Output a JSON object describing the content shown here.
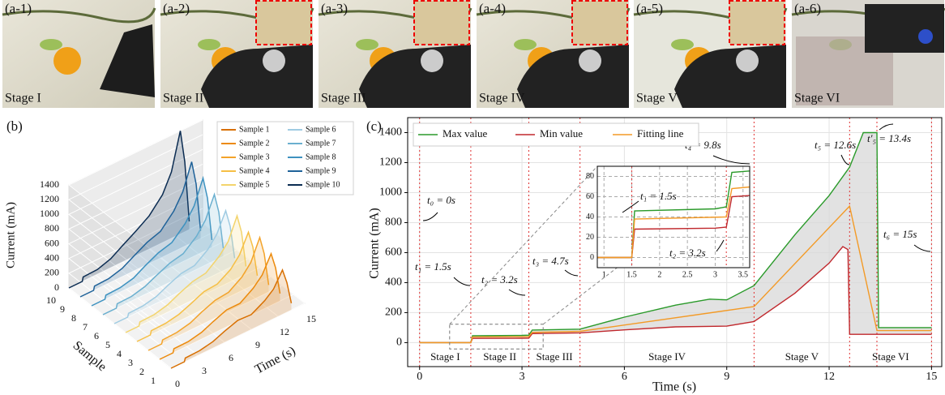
{
  "photos": [
    {
      "tag": "(a-1)",
      "stage": "Stage I"
    },
    {
      "tag": "(a-2)",
      "stage": "Stage II"
    },
    {
      "tag": "(a-3)",
      "stage": "Stage III"
    },
    {
      "tag": "(a-4)",
      "stage": "Stage IV"
    },
    {
      "tag": "(a-5)",
      "stage": "Stage V"
    },
    {
      "tag": "(a-6)",
      "stage": "Stage VI"
    }
  ],
  "chart_data": [
    {
      "type": "line3d",
      "panel": "(b)",
      "zlabel": "Current (mA)",
      "ylabel": "Sample",
      "xlabel": "Time (s)",
      "xlim": [
        0,
        15
      ],
      "xticks": [
        0,
        3,
        6,
        9,
        12,
        15
      ],
      "ylim": [
        1,
        10
      ],
      "yticks": [
        1,
        2,
        3,
        4,
        5,
        6,
        7,
        8,
        9,
        10
      ],
      "zlim": [
        0,
        1400
      ],
      "zticks": [
        0,
        200,
        400,
        600,
        800,
        1000,
        1200,
        1400
      ],
      "x": [
        0,
        1.5,
        1.6,
        3.2,
        4.7,
        6,
        7.5,
        9,
        10.5,
        11.5,
        12.5,
        13,
        13.5
      ],
      "series": [
        {
          "name": "Sample 1",
          "sample": 1,
          "color": "#d86f00",
          "values": [
            0,
            0,
            45,
            50,
            85,
            150,
            210,
            200,
            300,
            400,
            600,
            400,
            90
          ]
        },
        {
          "name": "Sample 2",
          "sample": 2,
          "color": "#ec8a0c",
          "values": [
            0,
            0,
            50,
            52,
            90,
            160,
            230,
            230,
            350,
            470,
            700,
            480,
            100
          ]
        },
        {
          "name": "Sample 3",
          "sample": 3,
          "color": "#f3a32a",
          "values": [
            0,
            0,
            48,
            55,
            95,
            170,
            240,
            260,
            380,
            520,
            800,
            550,
            95
          ]
        },
        {
          "name": "Sample 4",
          "sample": 4,
          "color": "#f6bf45",
          "values": [
            0,
            0,
            52,
            58,
            92,
            155,
            235,
            250,
            360,
            500,
            750,
            520,
            100
          ]
        },
        {
          "name": "Sample 5",
          "sample": 5,
          "color": "#f3d46c",
          "values": [
            0,
            0,
            50,
            56,
            100,
            175,
            250,
            280,
            420,
            560,
            850,
            600,
            105
          ]
        },
        {
          "name": "Sample 6",
          "sample": 6,
          "color": "#9fcbe2",
          "values": [
            0,
            0,
            46,
            52,
            90,
            165,
            240,
            260,
            390,
            540,
            800,
            560,
            95
          ]
        },
        {
          "name": "Sample 7",
          "sample": 7,
          "color": "#6aafcf",
          "values": [
            0,
            0,
            55,
            60,
            105,
            180,
            260,
            300,
            450,
            610,
            900,
            630,
            110
          ]
        },
        {
          "name": "Sample 8",
          "sample": 8,
          "color": "#3e92c0",
          "values": [
            0,
            0,
            50,
            58,
            100,
            190,
            280,
            330,
            500,
            680,
            1000,
            700,
            100
          ]
        },
        {
          "name": "Sample 9",
          "sample": 9,
          "color": "#1f6299",
          "values": [
            0,
            0,
            52,
            60,
            110,
            200,
            300,
            360,
            550,
            750,
            1100,
            770,
            105
          ]
        },
        {
          "name": "Sample 10",
          "sample": 10,
          "color": "#0b2c52",
          "values": [
            0,
            0,
            55,
            62,
            120,
            220,
            330,
            450,
            650,
            900,
            1400,
            950,
            110
          ]
        }
      ]
    },
    {
      "type": "line",
      "panel": "(c)",
      "xlabel": "Time (s)",
      "ylabel": "Current (mA)",
      "xlim": [
        -0.35,
        15.3
      ],
      "xticks": [
        0,
        3,
        6,
        9,
        12,
        15
      ],
      "ylim": [
        -160,
        1500
      ],
      "yticks": [
        0,
        200,
        400,
        600,
        800,
        1000,
        1200,
        1400
      ],
      "grid": true,
      "series": [
        {
          "name": "Max value",
          "color": "#2a9a2a",
          "x": [
            0,
            1.5,
            1.55,
            3.0,
            3.2,
            3.3,
            4.7,
            6,
            7.5,
            8.5,
            9.0,
            9.8,
            11,
            12,
            12.6,
            13,
            13.4,
            13.45,
            15
          ],
          "values": [
            0,
            0,
            46,
            48,
            50,
            84,
            90,
            170,
            250,
            290,
            285,
            380,
            720,
            980,
            1170,
            1400,
            1400,
            100,
            100
          ]
        },
        {
          "name": "Min value",
          "color": "#c0282d",
          "x": [
            0,
            1.5,
            1.55,
            3.0,
            3.2,
            3.3,
            4.7,
            6,
            7.5,
            9,
            9.8,
            11,
            12,
            12.4,
            12.55,
            12.6,
            13,
            15
          ],
          "values": [
            0,
            0,
            28,
            29,
            30,
            60,
            65,
            85,
            105,
            110,
            140,
            330,
            530,
            640,
            620,
            55,
            55,
            55
          ]
        },
        {
          "name": "Fitting line",
          "color": "#f39a26",
          "x": [
            0,
            1.5,
            1.55,
            3.2,
            3.3,
            4.7,
            9.8,
            12.6,
            13.4,
            15
          ],
          "values": [
            0,
            0,
            38,
            40,
            68,
            75,
            240,
            910,
            80,
            80
          ]
        }
      ],
      "events": [
        {
          "time": 0,
          "label": "t₀ = 0s"
        },
        {
          "time": 1.5,
          "label": "t₁ = 1.5s"
        },
        {
          "time": 3.2,
          "label": "t₂ = 3.2s"
        },
        {
          "time": 4.7,
          "label": "t₃ = 4.7s"
        },
        {
          "time": 9.8,
          "label": "t₄ = 9.8s"
        },
        {
          "time": 12.6,
          "label": "t₅ = 12.6s"
        },
        {
          "time": 13.4,
          "label": "t′₅ = 13.4s"
        },
        {
          "time": 15,
          "label": "t₆ = 15s"
        }
      ],
      "stages": [
        {
          "label": "Stage I",
          "range": [
            0,
            1.5
          ]
        },
        {
          "label": "Stage II",
          "range": [
            1.5,
            3.2
          ]
        },
        {
          "label": "Stage III",
          "range": [
            3.2,
            4.7
          ]
        },
        {
          "label": "Stage IV",
          "range": [
            4.7,
            9.8
          ]
        },
        {
          "label": "Stage V",
          "range": [
            9.8,
            12.6
          ]
        },
        {
          "label": "Stage VI",
          "range": [
            12.6,
            15
          ]
        }
      ],
      "inset": {
        "xlim": [
          0.88,
          3.62
        ],
        "xticks": [
          1,
          1.5,
          2,
          2.5,
          3,
          3.5
        ],
        "ylim": [
          -10,
          90
        ],
        "yticks": [
          0,
          20,
          40,
          60,
          80
        ]
      }
    }
  ]
}
